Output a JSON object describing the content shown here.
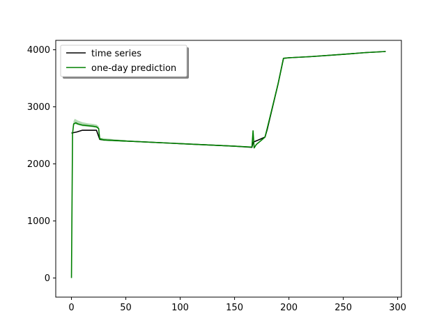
{
  "chart_data": {
    "type": "line",
    "title": "",
    "xlabel": "",
    "ylabel": "",
    "xlim": [
      -14.45,
      303.45
    ],
    "ylim": [
      -335,
      4165
    ],
    "x_ticks": [
      0,
      50,
      100,
      150,
      200,
      250,
      300
    ],
    "y_ticks": [
      0,
      1000,
      2000,
      3000,
      4000
    ],
    "grid": false,
    "legend": {
      "position": "top-left",
      "entries": [
        "time series",
        "one-day prediction"
      ]
    },
    "series": [
      {
        "name": "time series",
        "color": "#000000",
        "points": [
          [
            0,
            2540
          ],
          [
            5,
            2560
          ],
          [
            10,
            2590
          ],
          [
            15,
            2590
          ],
          [
            20,
            2590
          ],
          [
            23,
            2590
          ],
          [
            26,
            2430
          ],
          [
            30,
            2420
          ],
          [
            50,
            2400
          ],
          [
            100,
            2355
          ],
          [
            150,
            2310
          ],
          [
            166,
            2290
          ],
          [
            167,
            2380
          ],
          [
            172,
            2420
          ],
          [
            178,
            2470
          ],
          [
            180,
            2600
          ],
          [
            190,
            3400
          ],
          [
            195,
            3850
          ],
          [
            200,
            3860
          ],
          [
            220,
            3880
          ],
          [
            250,
            3920
          ],
          [
            270,
            3950
          ],
          [
            289,
            3970
          ]
        ]
      },
      {
        "name": "one-day prediction",
        "color": "#008000",
        "points": [
          [
            0,
            0
          ],
          [
            1,
            2530
          ],
          [
            2,
            2700
          ],
          [
            4,
            2720
          ],
          [
            6,
            2700
          ],
          [
            10,
            2680
          ],
          [
            15,
            2670
          ],
          [
            20,
            2660
          ],
          [
            23,
            2650
          ],
          [
            25,
            2620
          ],
          [
            26,
            2440
          ],
          [
            30,
            2420
          ],
          [
            40,
            2410
          ],
          [
            50,
            2400
          ],
          [
            100,
            2355
          ],
          [
            150,
            2310
          ],
          [
            165,
            2295
          ],
          [
            166,
            2300
          ],
          [
            167,
            2580
          ],
          [
            168,
            2280
          ],
          [
            170,
            2340
          ],
          [
            175,
            2420
          ],
          [
            178,
            2470
          ],
          [
            180,
            2620
          ],
          [
            190,
            3400
          ],
          [
            195,
            3850
          ],
          [
            200,
            3860
          ],
          [
            220,
            3880
          ],
          [
            250,
            3920
          ],
          [
            270,
            3950
          ],
          [
            289,
            3970
          ]
        ],
        "band": [
          [
            1,
            2500,
            2570
          ],
          [
            2,
            2660,
            2750
          ],
          [
            3,
            2700,
            2790
          ],
          [
            6,
            2680,
            2760
          ],
          [
            10,
            2660,
            2730
          ],
          [
            15,
            2650,
            2710
          ],
          [
            20,
            2640,
            2700
          ],
          [
            23,
            2630,
            2690
          ],
          [
            25,
            2610,
            2660
          ],
          [
            26,
            2420,
            2460
          ],
          [
            30,
            2400,
            2450
          ],
          [
            40,
            2395,
            2430
          ],
          [
            50,
            2385,
            2415
          ]
        ]
      }
    ]
  }
}
